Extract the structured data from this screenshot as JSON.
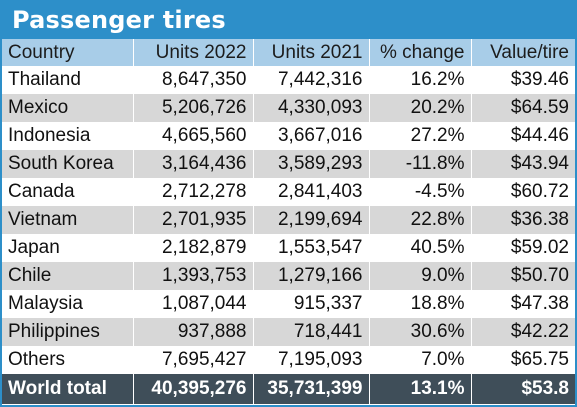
{
  "title": "Passenger tires",
  "columns": [
    "Country",
    "Units 2022",
    "Units 2021",
    "% change",
    "Value/tire"
  ],
  "rows": [
    {
      "country": "Thailand",
      "units_2022": "8,647,350",
      "units_2021": "7,442,316",
      "pct_change": "16.2%",
      "value_per_tire": "$39.46"
    },
    {
      "country": "Mexico",
      "units_2022": "5,206,726",
      "units_2021": "4,330,093",
      "pct_change": "20.2%",
      "value_per_tire": "$64.59"
    },
    {
      "country": "Indonesia",
      "units_2022": "4,665,560",
      "units_2021": "3,667,016",
      "pct_change": "27.2%",
      "value_per_tire": "$44.46"
    },
    {
      "country": "South Korea",
      "units_2022": "3,164,436",
      "units_2021": "3,589,293",
      "pct_change": "-11.8%",
      "value_per_tire": "$43.94"
    },
    {
      "country": "Canada",
      "units_2022": "2,712,278",
      "units_2021": "2,841,403",
      "pct_change": "-4.5%",
      "value_per_tire": "$60.72"
    },
    {
      "country": "Vietnam",
      "units_2022": "2,701,935",
      "units_2021": "2,199,694",
      "pct_change": "22.8%",
      "value_per_tire": "$36.38"
    },
    {
      "country": "Japan",
      "units_2022": "2,182,879",
      "units_2021": "1,553,547",
      "pct_change": "40.5%",
      "value_per_tire": "$59.02"
    },
    {
      "country": "Chile",
      "units_2022": "1,393,753",
      "units_2021": "1,279,166",
      "pct_change": "9.0%",
      "value_per_tire": "$50.70"
    },
    {
      "country": "Malaysia",
      "units_2022": "1,087,044",
      "units_2021": "915,337",
      "pct_change": "18.8%",
      "value_per_tire": "$47.38"
    },
    {
      "country": "Philippines",
      "units_2022": "937,888",
      "units_2021": "718,441",
      "pct_change": "30.6%",
      "value_per_tire": "$42.22"
    },
    {
      "country": "Others",
      "units_2022": "7,695,427",
      "units_2021": "7,195,093",
      "pct_change": "7.0%",
      "value_per_tire": "$65.75"
    }
  ],
  "total": {
    "country": "World total",
    "units_2022": "40,395,276",
    "units_2021": "35,731,399",
    "pct_change": "13.1%",
    "value_per_tire": "$53.8"
  },
  "colors": {
    "title_bar": "#2d8fc9",
    "header_row": "#a8cde8",
    "stripe": "#d7d7d7",
    "total_row": "#3f4e59"
  }
}
